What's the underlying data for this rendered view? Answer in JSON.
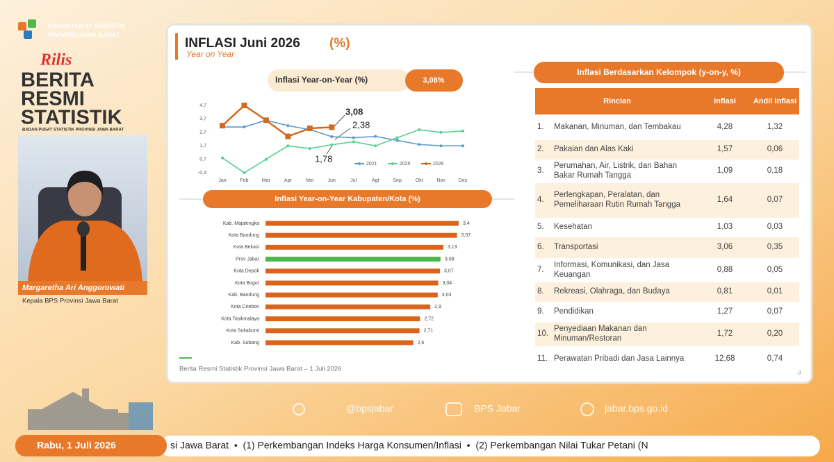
{
  "org": [
    "BADAN PUSAT STATISTIK",
    "PROVINSI JAWA BARAT"
  ],
  "brand": {
    "script": "Rilis",
    "lines": [
      "BERITA",
      "RESMI",
      "STATISTIK"
    ],
    "sub": "BADAN PUSAT STATISTIK PROVINSI JAWA BARAT"
  },
  "speaker": {
    "name": "Margaretha Ari Anggorowati",
    "role": "Kepala BPS Provinsi Jawa Barat"
  },
  "slide": {
    "title": "INFLASI Juni 2026",
    "unit": "(%)",
    "subtitle": "Year on Year",
    "headline_label": "Inflasi Year-on-Year (%)",
    "headline_value": "3,08%",
    "table_title": "Inflasi Berdasarkan Kelompok (y-on-y, %)",
    "footer": "Berita Resmi Statistik Provinsi Jawa Barat – 1 Juli 2026",
    "page": "8"
  },
  "chart_data": [
    {
      "type": "line",
      "categories": [
        "Jan",
        "Feb",
        "Mar",
        "Apr",
        "Mei",
        "Jun",
        "Jul",
        "Agt",
        "Sep",
        "Okt",
        "Nov",
        "Des"
      ],
      "series": [
        {
          "name": "2021",
          "color": "#5b9bc8",
          "values": [
            3.1,
            3.1,
            3.6,
            3.2,
            2.9,
            2.38,
            2.3,
            2.4,
            2.1,
            1.8,
            1.7,
            1.7
          ]
        },
        {
          "name": "2025",
          "color": "#57d08c",
          "values": [
            0.8,
            -0.3,
            0.7,
            1.7,
            1.5,
            1.78,
            2.0,
            1.7,
            2.3,
            2.9,
            2.7,
            2.8
          ]
        },
        {
          "name": "2026",
          "color": "#d2691e",
          "values": [
            3.2,
            4.7,
            3.6,
            2.4,
            3.0,
            3.08,
            null,
            null,
            null,
            null,
            null,
            null
          ]
        }
      ],
      "ylim": [
        -0.3,
        4.7
      ],
      "yticks": [
        {
          "value": -0.3,
          "label": "-0,3"
        },
        {
          "value": 0.7,
          "label": "0,7"
        },
        {
          "value": 1.7,
          "label": "1,7"
        },
        {
          "value": 2.7,
          "label": "2,7"
        },
        {
          "value": 3.7,
          "label": "3,7"
        },
        {
          "value": 4.7,
          "label": "4,7"
        }
      ],
      "annotations": [
        "3,08",
        "2,38",
        "1,78"
      ]
    },
    {
      "type": "bar",
      "title": "Inflasi Year-on-Year Kabupaten/Kota (%)",
      "categories": [
        "Kab. Majalengka",
        "Kota Bandung",
        "Kota Bekasi",
        "Prov Jabar",
        "Kota Depok",
        "Kota Bogor",
        "Kab. Bandung",
        "Kota Cirebon",
        "Kota Tasikmalaya",
        "Kota Sukabumi",
        "Kab. Subang"
      ],
      "values": [
        3.4,
        3.37,
        3.13,
        3.08,
        3.07,
        3.04,
        3.03,
        2.9,
        2.72,
        2.71,
        2.6
      ],
      "value_labels": [
        "3,4",
        "3,37",
        "3,13",
        "3,08",
        "3,07",
        "3,04",
        "3,03",
        "2,9",
        "2,72",
        "2,71",
        "2,6"
      ],
      "colors": [
        "#d9641e",
        "#d9641e",
        "#d9641e",
        "#4cb84c",
        "#d9641e",
        "#d9641e",
        "#d9641e",
        "#d9641e",
        "#d9641e",
        "#d9641e",
        "#d9641e"
      ]
    }
  ],
  "table": {
    "header": [
      "Rincian",
      "Inflasi",
      "Andil Inflasi"
    ],
    "rows": [
      [
        "1.",
        "Makanan, Minuman, dan Tembakau",
        "4,28",
        "1,32"
      ],
      [
        "2.",
        "Pakaian dan Alas Kaki",
        "1,57",
        "0,06"
      ],
      [
        "3.",
        "Perumahan, Air, Listrik, dan Bahan Bakar Rumah Tangga",
        "1,09",
        "0,18"
      ],
      [
        "4.",
        "Perlengkapan, Peralatan, dan Pemeliharaan Rutin Rumah Tangga",
        "1,64",
        "0,07"
      ],
      [
        "5.",
        "Kesehatan",
        "1,03",
        "0,03"
      ],
      [
        "6.",
        "Transportasi",
        "3,06",
        "0,35"
      ],
      [
        "7.",
        "Informasi, Komunikasi, dan Jasa Keuangan",
        "0,88",
        "0,05"
      ],
      [
        "8.",
        "Rekreasi, Olahraga, dan Budaya",
        "0,81",
        "0,01"
      ],
      [
        "9.",
        "Pendidikan",
        "1,27",
        "0,07"
      ],
      [
        "10.",
        "Penyediaan Makanan dan Minuman/Restoran",
        "1,72",
        "0,20"
      ],
      [
        "11.",
        "Perawatan Pribadi dan Jasa Lainnya",
        "12,68",
        "0,74"
      ]
    ]
  },
  "social": [
    "@bpsjabar",
    "BPS Jabar",
    "jabar.bps.go.id"
  ],
  "date": "Rabu, 1 Juli 2026",
  "ticker": "si Jawa Barat  •  (1) Perkembangan Indeks Harga Konsumen/Inflasi  •  (2) Perkembangan Nilai Tukar Petani (N"
}
